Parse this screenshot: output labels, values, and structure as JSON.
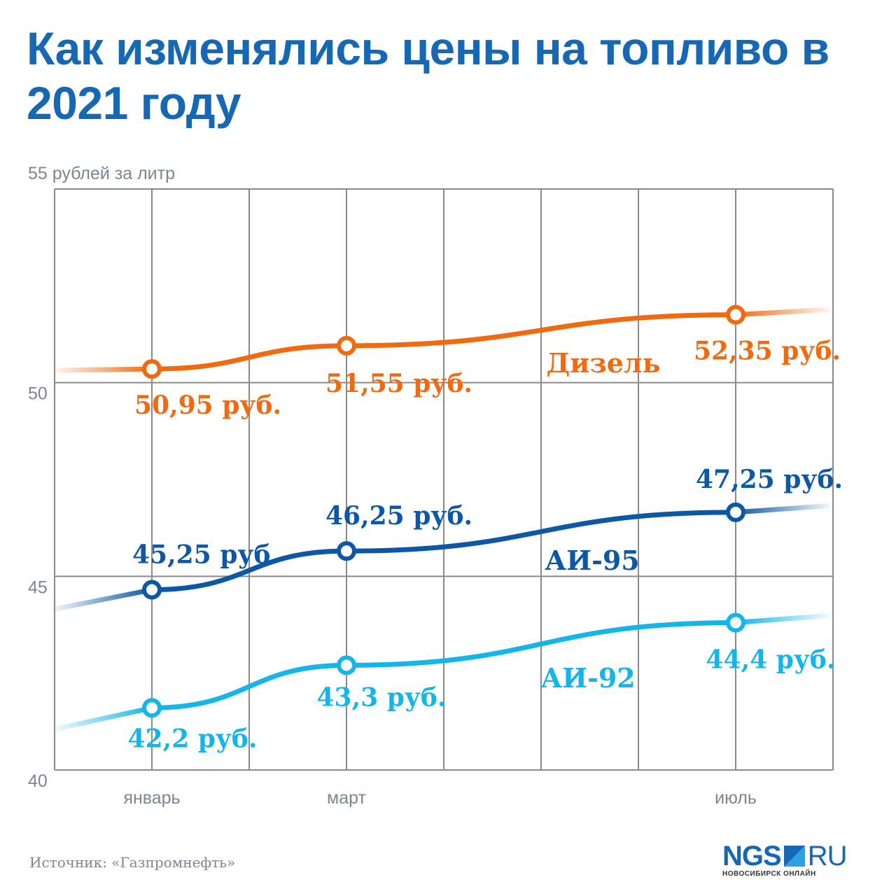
{
  "title": "Как изменялись цены на топливо в 2021 году",
  "source": "Источник: «Газпромнефть»",
  "logo": {
    "main": "NGS",
    "suffix": "RU",
    "subtitle": "НОВОСИБИРСК ОНЛАЙН"
  },
  "chart_data": {
    "type": "line",
    "title": "Как изменялись цены на топливо в 2021 году",
    "ylabel": "рублей за литр",
    "ylim": [
      40,
      55
    ],
    "yticks": [
      {
        "value": 55,
        "label": "55 рублей за литр"
      },
      {
        "value": 50,
        "label": "50"
      },
      {
        "value": 45,
        "label": "45"
      },
      {
        "value": 40,
        "label": "40"
      }
    ],
    "xlim": [
      0,
      8
    ],
    "xticks": [
      {
        "month": 1,
        "label": "январь"
      },
      {
        "month": 3,
        "label": "март"
      },
      {
        "month": 7,
        "label": "июль"
      }
    ],
    "grid": true,
    "series": [
      {
        "name": "Дизель",
        "color": "#f26a10",
        "x": [
          1,
          3,
          7
        ],
        "values": [
          50.95,
          51.55,
          52.35
        ],
        "labels": [
          "50,95 руб.",
          "51,55 руб.",
          "52,35 руб."
        ]
      },
      {
        "name": "АИ-95",
        "color": "#0d58a6",
        "x": [
          1,
          3,
          7
        ],
        "values": [
          45.25,
          46.25,
          47.25
        ],
        "labels": [
          "45,25 руб.",
          "46,25 руб.",
          "47,25 руб."
        ]
      },
      {
        "name": "АИ-92",
        "color": "#13b5ea",
        "x": [
          1,
          3,
          7
        ],
        "values": [
          42.2,
          43.3,
          44.4
        ],
        "labels": [
          "42,2 руб.",
          "43,3 руб.",
          "44,4 руб."
        ]
      }
    ]
  }
}
